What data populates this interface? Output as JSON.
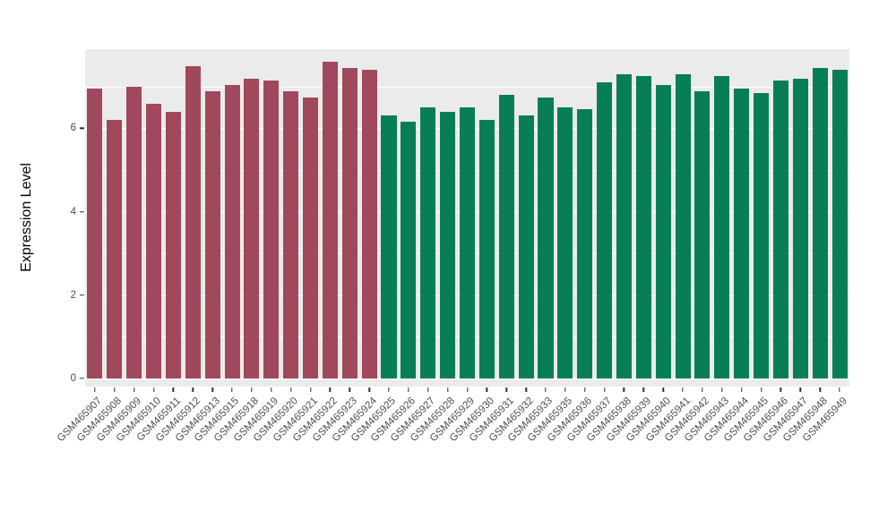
{
  "chart_data": {
    "type": "bar",
    "title": "",
    "xlabel": "",
    "ylabel": "Expression Level",
    "ylim": [
      0,
      7.9
    ],
    "yticks": [
      0,
      2,
      4,
      6
    ],
    "minor_gridlines": [
      1,
      3,
      5,
      7
    ],
    "legend": "none",
    "grid": "on",
    "panel_background": "#EBEBEB",
    "grid_color": "#FFFFFF",
    "group_colors": [
      "#A0485C",
      "#077E56"
    ],
    "group_split_index": 15,
    "categories": [
      "GSM465907",
      "GSM465908",
      "GSM465909",
      "GSM465910",
      "GSM465911",
      "GSM465912",
      "GSM465913",
      "GSM465915",
      "GSM465918",
      "GSM465919",
      "GSM465920",
      "GSM465921",
      "GSM465922",
      "GSM465923",
      "GSM465924",
      "GSM465925",
      "GSM465926",
      "GSM465927",
      "GSM465928",
      "GSM465929",
      "GSM465930",
      "GSM465931",
      "GSM465932",
      "GSM465933",
      "GSM465935",
      "GSM465936",
      "GSM465937",
      "GSM465938",
      "GSM465939",
      "GSM465940",
      "GSM465941",
      "GSM465942",
      "GSM465943",
      "GSM465944",
      "GSM465945",
      "GSM465946",
      "GSM465947",
      "GSM465948",
      "GSM465949"
    ],
    "values": [
      6.95,
      6.2,
      7.0,
      6.6,
      6.4,
      7.5,
      6.9,
      7.05,
      7.2,
      7.15,
      6.9,
      6.75,
      7.6,
      7.45,
      7.4,
      6.3,
      6.15,
      6.5,
      6.4,
      6.5,
      6.2,
      6.8,
      6.3,
      6.75,
      6.5,
      6.45,
      7.1,
      7.3,
      7.25,
      7.05,
      7.3,
      6.9,
      7.25,
      6.95,
      6.85,
      7.15,
      7.2,
      7.45,
      7.4
    ]
  }
}
